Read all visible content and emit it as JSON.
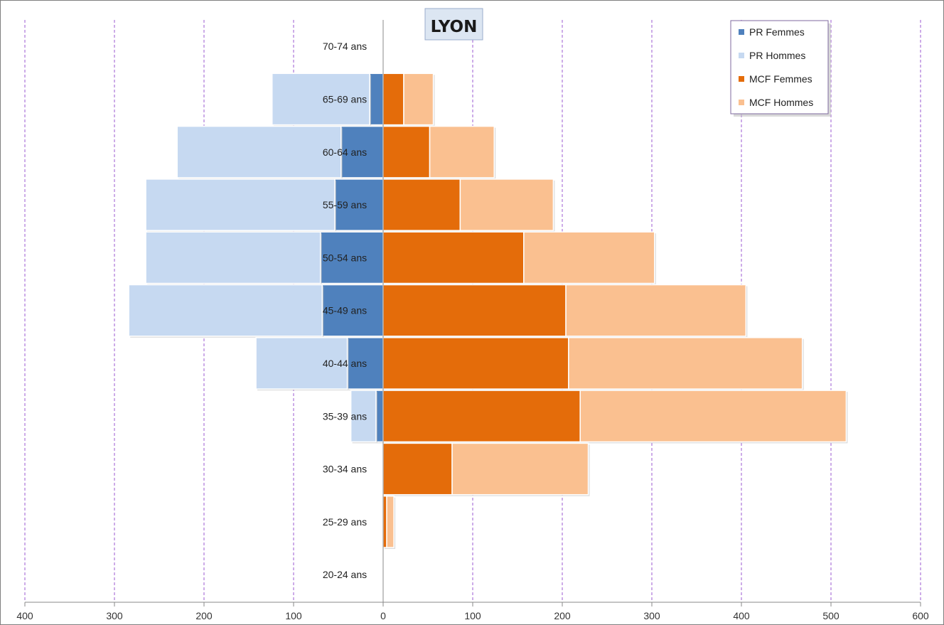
{
  "chart_data": {
    "type": "bar",
    "orientation": "horizontal",
    "stacked": true,
    "title": "LYON",
    "categories": [
      "70-74 ans",
      "65-69 ans",
      "60-64 ans",
      "55-59 ans",
      "50-54 ans",
      "45-49 ans",
      "40-44 ans",
      "35-39 ans",
      "30-34 ans",
      "25-29 ans",
      "20-24 ans"
    ],
    "series": [
      {
        "name": "PR Femmes",
        "color": "#4F81BD",
        "values": [
          0,
          -15,
          -47,
          -54,
          -70,
          -68,
          -40,
          -8,
          0,
          0,
          0
        ]
      },
      {
        "name": "PR Hommes",
        "color": "#C6D9F1",
        "values": [
          0,
          -109,
          -183,
          -211,
          -195,
          -216,
          -102,
          -28,
          0,
          0,
          0
        ]
      },
      {
        "name": "MCF Femmes",
        "color": "#E46C0A",
        "values": [
          0,
          23,
          52,
          86,
          157,
          204,
          207,
          220,
          77,
          4,
          0
        ]
      },
      {
        "name": "MCF Hommes",
        "color": "#FAC090",
        "values": [
          0,
          33,
          72,
          104,
          146,
          201,
          261,
          297,
          152,
          8,
          0
        ]
      }
    ],
    "xlim": [
      -400,
      600
    ],
    "xticks": [
      -400,
      -300,
      -200,
      -100,
      0,
      100,
      200,
      300,
      400,
      500,
      600
    ],
    "xtick_labels": [
      "400",
      "300",
      "200",
      "100",
      "0",
      "100",
      "200",
      "300",
      "400",
      "500",
      "600"
    ],
    "grid": "vertical dashed",
    "legend_position": "top-right"
  }
}
